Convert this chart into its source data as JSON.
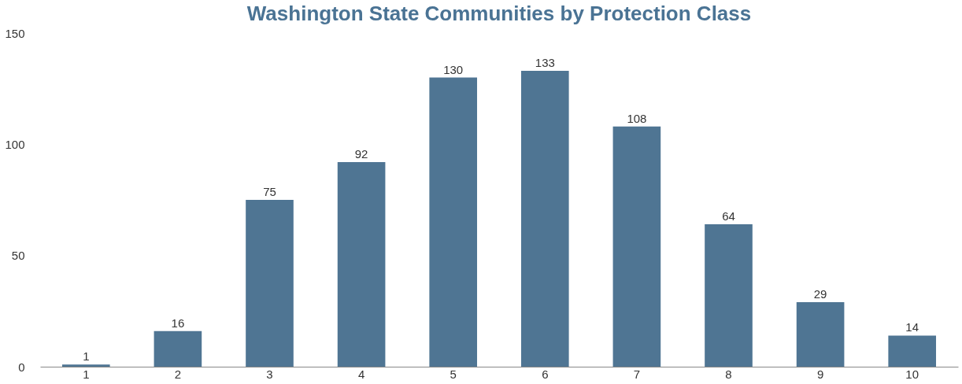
{
  "chart_data": {
    "type": "bar",
    "title": "Washington State Communities by Protection Class",
    "categories": [
      "1",
      "2",
      "3",
      "4",
      "5",
      "6",
      "7",
      "8",
      "9",
      "10"
    ],
    "values": [
      1,
      16,
      75,
      92,
      130,
      133,
      108,
      64,
      29,
      14
    ],
    "color": "#4f7593",
    "ylim": [
      0,
      150
    ],
    "yticks": [
      0,
      50,
      100,
      150
    ],
    "data_labels": true
  }
}
